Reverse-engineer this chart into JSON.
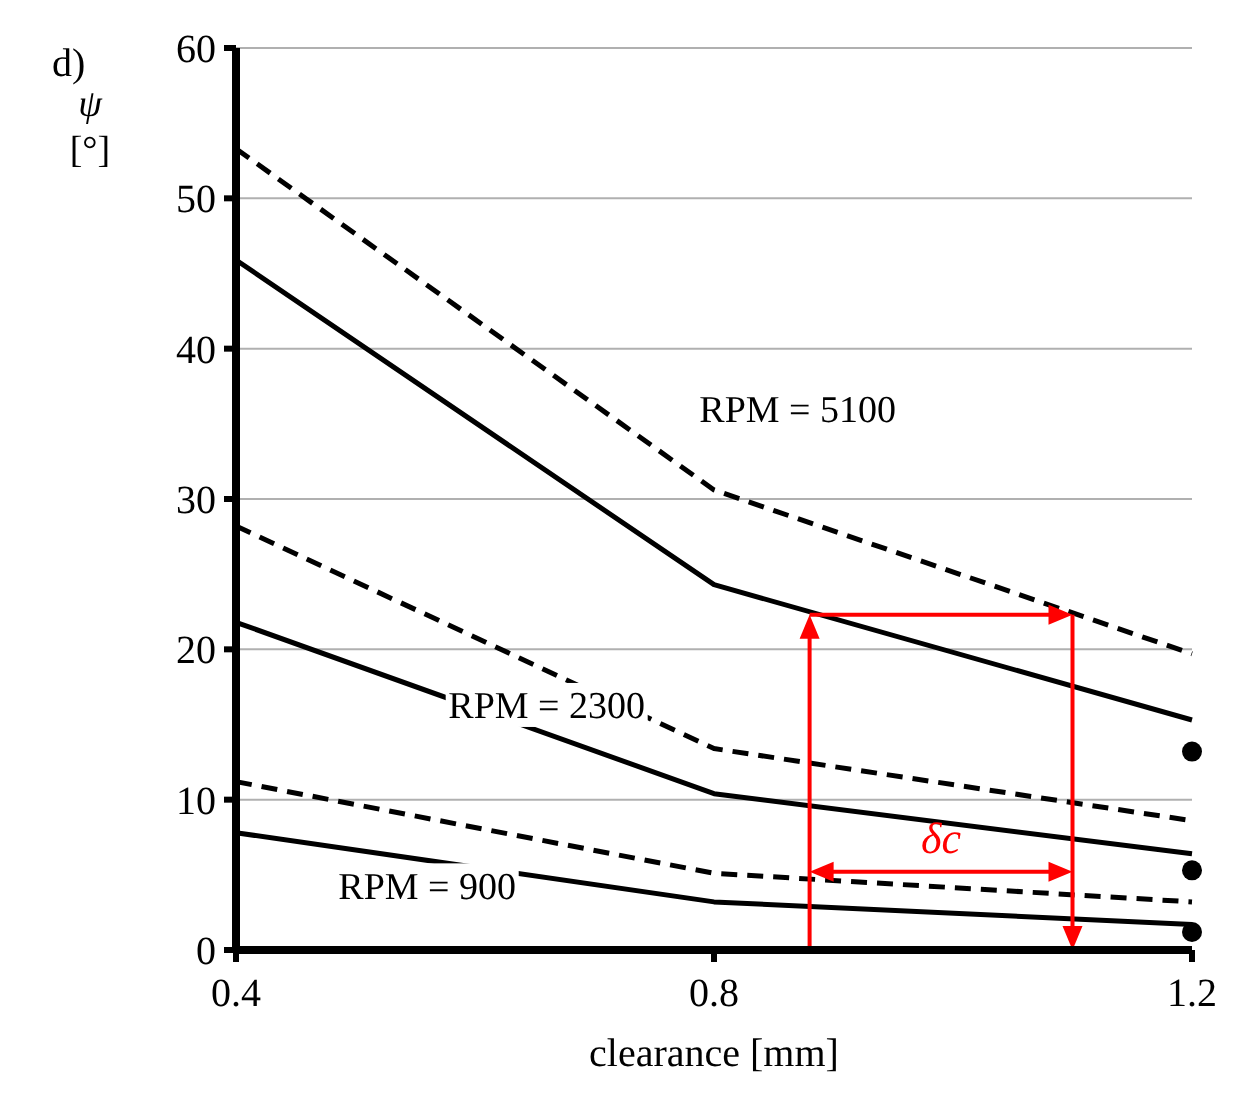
{
  "chart_data": {
    "type": "line",
    "xlabel": "clearance [mm]",
    "ylabel": "ψ [°]",
    "xlim": [
      0.4,
      1.2
    ],
    "xticks": [
      0.4,
      0.8,
      1.2
    ],
    "ylim": [
      0,
      60
    ],
    "yticks": [
      0,
      10,
      20,
      30,
      40,
      50,
      60
    ],
    "grid": "y",
    "marker": "none",
    "x": [
      0.4,
      0.8,
      1.2
    ],
    "series": [
      {
        "color": "#000000",
        "line_style": "dashed",
        "values": [
          53.3,
          30.6,
          19.7
        ]
      },
      {
        "color": "#000000",
        "line_style": "solid",
        "values": [
          45.9,
          24.3,
          15.3
        ]
      },
      {
        "color": "#000000",
        "line_style": "dashed",
        "values": [
          28.2,
          13.4,
          8.6
        ]
      },
      {
        "color": "#000000",
        "line_style": "solid",
        "values": [
          21.8,
          10.4,
          6.4
        ]
      },
      {
        "color": "#000000",
        "line_style": "dashed",
        "values": [
          11.2,
          5.1,
          3.2
        ]
      },
      {
        "color": "#000000",
        "line_style": "solid",
        "values": [
          7.8,
          3.2,
          1.7
        ]
      },
      {
        "type": "scatter",
        "marker": "circle",
        "color": "#000000",
        "values": [
          null,
          null,
          13.2
        ]
      },
      {
        "type": "scatter",
        "marker": "circle",
        "color": "#000000",
        "values": [
          null,
          null,
          5.3
        ]
      },
      {
        "type": "scatter",
        "marker": "circle",
        "color": "#000000",
        "values": [
          null,
          null,
          1.2
        ]
      }
    ],
    "annotations": [
      "d)",
      "RPM = 5100",
      "RPM = 2300",
      "RPM = 900",
      "δc"
    ]
  }
}
